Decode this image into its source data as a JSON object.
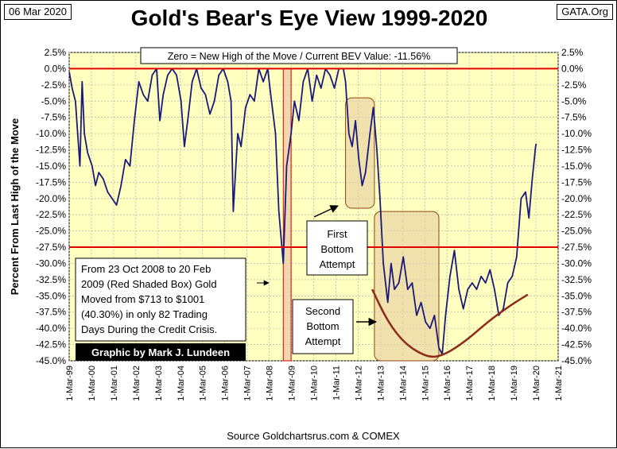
{
  "header": {
    "date": "06 Mar 2020",
    "source_tag": "GATA.Org",
    "title": "Gold's Bear's Eye View 1999-2020"
  },
  "colors": {
    "plot_bg": "#ffffc0",
    "series": "#1a1a7a",
    "red_line": "#e00000",
    "box_fill": "#e8cfa0",
    "box_stroke": "#8b4513",
    "curve": "#8b2a1a"
  },
  "chart_data": {
    "type": "line",
    "title": "Gold's Bear's Eye View 1999-2020",
    "subtitle": "Zero = New High of the Move / Current BEV Value:  -11.56%",
    "ylabel": "Percent  From Last High of the Move",
    "xlabel": "Source Goldchartsrus.com & COMEX",
    "ylim": [
      -45,
      2.5
    ],
    "xlim": [
      1999.167,
      2021.167
    ],
    "y_ticks": [
      "2.5%",
      "0.0%",
      "-2.5%",
      "-5.0%",
      "-7.5%",
      "-10.0%",
      "-12.5%",
      "-15.0%",
      "-17.5%",
      "-20.0%",
      "-22.5%",
      "-25.0%",
      "-27.5%",
      "-30.0%",
      "-32.5%",
      "-35.0%",
      "-37.5%",
      "-40.0%",
      "-42.5%",
      "-45.0%"
    ],
    "x_ticks": [
      "1-Mar-99",
      "1-Mar-00",
      "1-Mar-01",
      "1-Mar-02",
      "1-Mar-03",
      "1-Mar-04",
      "1-Mar-05",
      "1-Mar-06",
      "1-Mar-07",
      "1-Mar-08",
      "1-Mar-09",
      "1-Mar-10",
      "1-Mar-11",
      "1-Mar-12",
      "1-Mar-13",
      "1-Mar-14",
      "1-Mar-15",
      "1-Mar-16",
      "1-Mar-17",
      "1-Mar-18",
      "1-Mar-19",
      "1-Mar-20",
      "1-Mar-21"
    ],
    "reference_lines": [
      0,
      -27.5
    ],
    "series": [
      {
        "name": "Gold BEV",
        "points": [
          [
            1999.17,
            -0.5
          ],
          [
            1999.3,
            -3
          ],
          [
            1999.45,
            -5
          ],
          [
            1999.55,
            -10
          ],
          [
            1999.65,
            -15
          ],
          [
            1999.75,
            -2
          ],
          [
            1999.85,
            -10
          ],
          [
            2000.0,
            -13
          ],
          [
            2000.2,
            -15
          ],
          [
            2000.35,
            -18
          ],
          [
            2000.5,
            -16
          ],
          [
            2000.7,
            -17
          ],
          [
            2000.9,
            -19
          ],
          [
            2001.1,
            -20
          ],
          [
            2001.3,
            -21
          ],
          [
            2001.5,
            -18
          ],
          [
            2001.7,
            -14
          ],
          [
            2001.9,
            -15
          ],
          [
            2002.1,
            -8
          ],
          [
            2002.3,
            -2
          ],
          [
            2002.5,
            -4
          ],
          [
            2002.7,
            -5
          ],
          [
            2002.9,
            -1
          ],
          [
            2003.1,
            0
          ],
          [
            2003.25,
            -8
          ],
          [
            2003.4,
            -4
          ],
          [
            2003.6,
            -1
          ],
          [
            2003.8,
            0
          ],
          [
            2004.0,
            -1
          ],
          [
            2004.2,
            -5
          ],
          [
            2004.35,
            -12
          ],
          [
            2004.5,
            -8
          ],
          [
            2004.7,
            -2
          ],
          [
            2004.9,
            0
          ],
          [
            2005.1,
            -3
          ],
          [
            2005.3,
            -4
          ],
          [
            2005.5,
            -7
          ],
          [
            2005.7,
            -5
          ],
          [
            2005.9,
            -1
          ],
          [
            2006.1,
            0
          ],
          [
            2006.3,
            -2
          ],
          [
            2006.45,
            -5
          ],
          [
            2006.55,
            -22
          ],
          [
            2006.75,
            -10
          ],
          [
            2006.9,
            -12
          ],
          [
            2007.1,
            -6
          ],
          [
            2007.3,
            -4
          ],
          [
            2007.5,
            -5
          ],
          [
            2007.7,
            0
          ],
          [
            2007.9,
            -2
          ],
          [
            2008.1,
            0
          ],
          [
            2008.2,
            -3
          ],
          [
            2008.45,
            -10
          ],
          [
            2008.6,
            -22
          ],
          [
            2008.8,
            -30
          ],
          [
            2008.95,
            -15
          ],
          [
            2009.15,
            -10
          ],
          [
            2009.3,
            -5
          ],
          [
            2009.5,
            -8
          ],
          [
            2009.7,
            -2
          ],
          [
            2009.9,
            0
          ],
          [
            2010.1,
            -5
          ],
          [
            2010.3,
            -1
          ],
          [
            2010.5,
            -3
          ],
          [
            2010.7,
            0
          ],
          [
            2010.9,
            -1
          ],
          [
            2011.1,
            -3
          ],
          [
            2011.3,
            0
          ],
          [
            2011.5,
            0
          ],
          [
            2011.6,
            -2
          ],
          [
            2011.75,
            -10
          ],
          [
            2011.9,
            -12
          ],
          [
            2012.05,
            -8
          ],
          [
            2012.2,
            -14
          ],
          [
            2012.35,
            -18
          ],
          [
            2012.5,
            -16
          ],
          [
            2012.7,
            -10
          ],
          [
            2012.85,
            -6
          ],
          [
            2013.0,
            -12
          ],
          [
            2013.15,
            -20
          ],
          [
            2013.3,
            -30
          ],
          [
            2013.5,
            -36
          ],
          [
            2013.65,
            -30
          ],
          [
            2013.8,
            -34
          ],
          [
            2014.0,
            -33
          ],
          [
            2014.2,
            -29
          ],
          [
            2014.4,
            -34
          ],
          [
            2014.6,
            -33
          ],
          [
            2014.8,
            -38
          ],
          [
            2015.0,
            -36
          ],
          [
            2015.2,
            -39
          ],
          [
            2015.4,
            -40
          ],
          [
            2015.6,
            -38
          ],
          [
            2015.8,
            -43
          ],
          [
            2015.95,
            -44
          ],
          [
            2016.1,
            -38
          ],
          [
            2016.3,
            -32
          ],
          [
            2016.5,
            -28
          ],
          [
            2016.7,
            -34
          ],
          [
            2016.9,
            -37
          ],
          [
            2017.1,
            -34
          ],
          [
            2017.3,
            -33
          ],
          [
            2017.5,
            -34
          ],
          [
            2017.7,
            -32
          ],
          [
            2017.9,
            -33
          ],
          [
            2018.1,
            -31
          ],
          [
            2018.3,
            -34
          ],
          [
            2018.5,
            -38
          ],
          [
            2018.7,
            -37
          ],
          [
            2018.9,
            -33
          ],
          [
            2019.1,
            -32
          ],
          [
            2019.3,
            -29
          ],
          [
            2019.5,
            -20
          ],
          [
            2019.7,
            -19
          ],
          [
            2019.85,
            -23
          ],
          [
            2020.0,
            -17
          ],
          [
            2020.15,
            -12
          ],
          [
            2020.18,
            -11.56
          ]
        ]
      }
    ],
    "shaded_boxes": [
      {
        "x": [
          2008.8,
          2009.15
        ],
        "y": [
          0,
          -45
        ],
        "color": "red"
      },
      {
        "x": [
          2011.6,
          2012.9
        ],
        "y": [
          -4.5,
          -21.5
        ],
        "color": "tan"
      },
      {
        "x": [
          2012.9,
          2015.8
        ],
        "y": [
          -22,
          -45
        ],
        "color": "tan"
      }
    ],
    "trend_curve": [
      [
        2012.8,
        -34
      ],
      [
        2013.5,
        -39
      ],
      [
        2014.3,
        -42.5
      ],
      [
        2015.3,
        -44.5
      ],
      [
        2016.0,
        -44.2
      ],
      [
        2017.0,
        -42
      ],
      [
        2018.0,
        -39
      ],
      [
        2019.0,
        -36.5
      ],
      [
        2019.8,
        -34.8
      ]
    ],
    "annotations": [
      {
        "id": "zero-note",
        "lines": [
          "Zero = New High of the Move / Current BEV Value:  -11.56%"
        ]
      },
      {
        "id": "credit-crisis",
        "lines": [
          "From  23 Oct 2008 to 20 Feb",
          "2009 (Red Shaded Box)  Gold",
          "Moved from $713 to $1001",
          "(40.30%) in only 82 Trading",
          "Days During the Credit Crisis."
        ]
      },
      {
        "id": "first-bottom",
        "lines": [
          "First",
          "Bottom",
          "Attempt"
        ]
      },
      {
        "id": "second-bottom",
        "lines": [
          "Second",
          "Bottom",
          "Attempt"
        ]
      },
      {
        "id": "credit",
        "lines": [
          "Graphic by Mark J. Lundeen"
        ]
      }
    ]
  }
}
